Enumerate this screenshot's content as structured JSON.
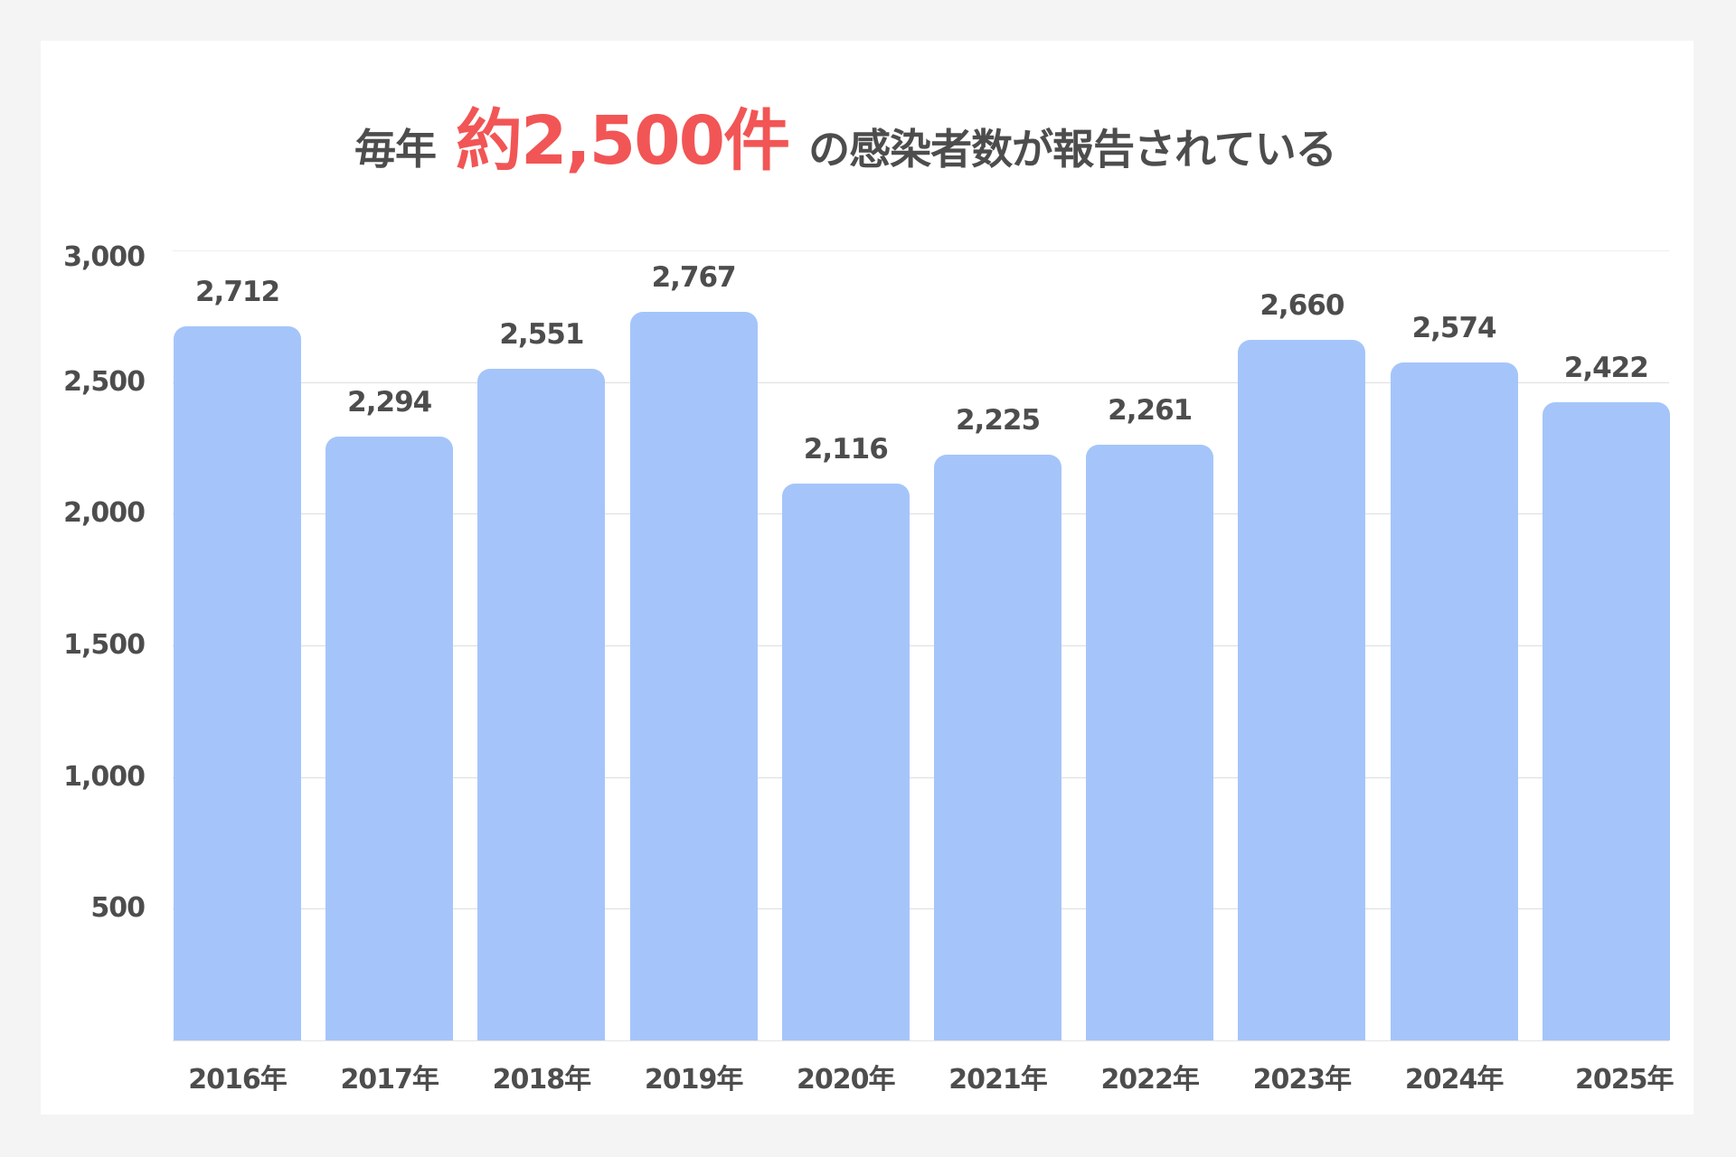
{
  "title": {
    "prefix": "毎年",
    "accent": "約2,500件",
    "suffix": "の感染者数が報告されている"
  },
  "colors": {
    "background": "#f4f4f4",
    "card": "#ffffff",
    "bar": "#a5c5fa",
    "accent": "#f25555",
    "text": "#4d4d4d",
    "grid": "#dedede"
  },
  "chart_data": {
    "type": "bar",
    "title": "毎年 約2,500件 の感染者数が報告されている",
    "xlabel": "",
    "ylabel": "",
    "categories": [
      "2016年",
      "2017年",
      "2018年",
      "2019年",
      "2020年",
      "2021年",
      "2022年",
      "2023年",
      "2024年",
      "2025年"
    ],
    "values": [
      2712,
      2294,
      2551,
      2767,
      2116,
      2225,
      2261,
      2660,
      2574,
      2422
    ],
    "value_labels": [
      "2,712",
      "2,294",
      "2,551",
      "2,767",
      "2,116",
      "2,225",
      "2,261",
      "2,660",
      "2,574",
      "2,422"
    ],
    "ylim": [
      0,
      3000
    ],
    "yticks": [
      500,
      1000,
      1500,
      2000,
      2500,
      3000
    ],
    "ytick_labels": [
      "500",
      "1,000",
      "1,500",
      "2,000",
      "2,500",
      "3,000"
    ],
    "grid": true,
    "legend": null
  }
}
